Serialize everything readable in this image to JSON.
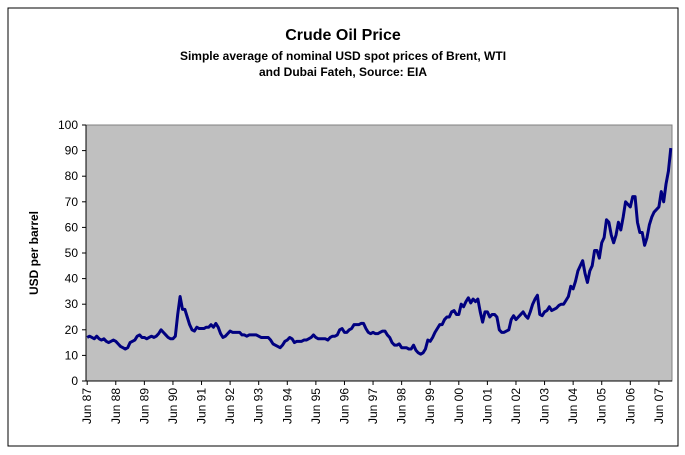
{
  "chart_data": {
    "type": "line",
    "title": "Crude Oil Price",
    "subtitle": "Simple average of nominal USD spot prices of Brent, WTI and Dubai Fateh, Source: EIA",
    "y_label": "USD per barrel",
    "categories": [
      "Jun 87",
      null,
      null,
      null,
      null,
      null,
      null,
      null,
      null,
      null,
      null,
      null,
      "Jun 88",
      null,
      null,
      null,
      null,
      null,
      null,
      null,
      null,
      null,
      null,
      null,
      "Jun 89",
      null,
      null,
      null,
      null,
      null,
      null,
      null,
      null,
      null,
      null,
      null,
      "Jun 90",
      null,
      null,
      null,
      null,
      null,
      null,
      null,
      null,
      null,
      null,
      null,
      "Jun 91",
      null,
      null,
      null,
      null,
      null,
      null,
      null,
      null,
      null,
      null,
      null,
      "Jun 92",
      null,
      null,
      null,
      null,
      null,
      null,
      null,
      null,
      null,
      null,
      null,
      "Jun 93",
      null,
      null,
      null,
      null,
      null,
      null,
      null,
      null,
      null,
      null,
      null,
      "Jun 94",
      null,
      null,
      null,
      null,
      null,
      null,
      null,
      null,
      null,
      null,
      null,
      "Jun 95",
      null,
      null,
      null,
      null,
      null,
      null,
      null,
      null,
      null,
      null,
      null,
      "Jun 96",
      null,
      null,
      null,
      null,
      null,
      null,
      null,
      null,
      null,
      null,
      null,
      "Jun 97",
      null,
      null,
      null,
      null,
      null,
      null,
      null,
      null,
      null,
      null,
      null,
      "Jun 98",
      null,
      null,
      null,
      null,
      null,
      null,
      null,
      null,
      null,
      null,
      null,
      "Jun 99",
      null,
      null,
      null,
      null,
      null,
      null,
      null,
      null,
      null,
      null,
      null,
      "Jun 00",
      null,
      null,
      null,
      null,
      null,
      null,
      null,
      null,
      null,
      null,
      null,
      "Jun 01",
      null,
      null,
      null,
      null,
      null,
      null,
      null,
      null,
      null,
      null,
      null,
      "Jun 02",
      null,
      null,
      null,
      null,
      null,
      null,
      null,
      null,
      null,
      null,
      null,
      "Jun 03",
      null,
      null,
      null,
      null,
      null,
      null,
      null,
      null,
      null,
      null,
      null,
      "Jun 04",
      null,
      null,
      null,
      null,
      null,
      null,
      null,
      null,
      null,
      null,
      null,
      "Jun 05",
      null,
      null,
      null,
      null,
      null,
      null,
      null,
      null,
      null,
      null,
      null,
      "Jun 06",
      null,
      null,
      null,
      null,
      null,
      null,
      null,
      null,
      null,
      null,
      null,
      "Jun 07",
      null,
      null,
      null,
      null,
      null
    ],
    "series": [
      {
        "name": "Crude Oil Price",
        "color": "#000080",
        "values": [
          17,
          17.5,
          17,
          16.5,
          17.5,
          16.5,
          16,
          16.5,
          15.5,
          15,
          15.5,
          16,
          15.5,
          14.5,
          13.5,
          13,
          12.5,
          13,
          15,
          15.5,
          16,
          17.5,
          18,
          17,
          17,
          16.5,
          17,
          17.5,
          17,
          17.5,
          18.5,
          20,
          19,
          18,
          17,
          16.5,
          16.5,
          17.5,
          26,
          33,
          28,
          28,
          25,
          22,
          20,
          19.5,
          21,
          20.5,
          20.5,
          20.5,
          21,
          21,
          22,
          21,
          22.5,
          21,
          18.5,
          17,
          17.5,
          18.5,
          19.5,
          19,
          19,
          19,
          19,
          18,
          18,
          17.5,
          18,
          18,
          18,
          18,
          17.5,
          17,
          17,
          17,
          17,
          16,
          14.5,
          14,
          13.5,
          13,
          14,
          15.5,
          16,
          17,
          16.5,
          15,
          15.5,
          15.5,
          15.5,
          16,
          16,
          16.5,
          17,
          18,
          17,
          16.5,
          16.5,
          16.5,
          16.5,
          16,
          17,
          17.5,
          17.5,
          18,
          20,
          20.5,
          19,
          19,
          20,
          20.5,
          22,
          22,
          22,
          22.5,
          22.5,
          20.5,
          19,
          18.5,
          19,
          18.5,
          18.5,
          19,
          19.5,
          19.5,
          18,
          17,
          15,
          14,
          14,
          14.5,
          13,
          13,
          13,
          12.5,
          12.5,
          14,
          12,
          11,
          10.5,
          11,
          12.5,
          16,
          15.5,
          17,
          19,
          20.5,
          22,
          22,
          24,
          25,
          25,
          27,
          27.5,
          26,
          26,
          30,
          29,
          31,
          32.5,
          30.5,
          32,
          31,
          32,
          27,
          23,
          27,
          27,
          25,
          26,
          26,
          25,
          20,
          19,
          19,
          19.5,
          20,
          24,
          25.5,
          24,
          25,
          26,
          27,
          25.5,
          24.5,
          27,
          30,
          32,
          33.5,
          26,
          25.5,
          27,
          27.5,
          29,
          27.5,
          28,
          28.5,
          29.5,
          30,
          30,
          31.5,
          33,
          37,
          36,
          39,
          43,
          45,
          47,
          42,
          38.5,
          43,
          45,
          51,
          51,
          48,
          54,
          56,
          63,
          62,
          57,
          54,
          57,
          62,
          59,
          64,
          70,
          69,
          68,
          72,
          72,
          62,
          58,
          58,
          53,
          56,
          61,
          64,
          66,
          67,
          68,
          74,
          70,
          77,
          82,
          91
        ]
      }
    ],
    "ylim": [
      0,
      100
    ],
    "yticks": [
      0,
      10,
      20,
      30,
      40,
      50,
      60,
      70,
      80,
      90,
      100
    ],
    "grid": false,
    "plot_background": "#c0c0c0"
  }
}
